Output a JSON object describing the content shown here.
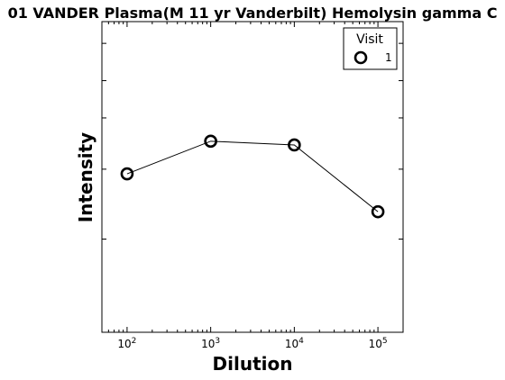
{
  "chart_data": {
    "type": "line",
    "title": "01 VANDER Plasma(M 11 yr Vanderbilt) Hemolysin gamma C",
    "xlabel": "Dilution",
    "ylabel": "Intensity",
    "xscale": "log",
    "xlim": [
      50,
      200000
    ],
    "ylim": [
      0,
      1
    ],
    "x_ticks": [
      {
        "value": 100,
        "base": "10",
        "exp": "2"
      },
      {
        "value": 1000,
        "base": "10",
        "exp": "3"
      },
      {
        "value": 10000,
        "base": "10",
        "exp": "4"
      },
      {
        "value": 100000,
        "base": "10",
        "exp": "5"
      }
    ],
    "y_ticks": [
      0.3,
      0.525,
      0.69,
      0.81,
      0.93
    ],
    "grid": false,
    "legend": {
      "title": "Visit",
      "position": "top-right",
      "entries": [
        "1"
      ]
    },
    "series": [
      {
        "name": "1",
        "marker": "open-circle",
        "color": "#000000",
        "x": [
          100,
          1000,
          10000,
          100000
        ],
        "y": [
          0.51,
          0.615,
          0.603,
          0.388
        ]
      }
    ]
  }
}
